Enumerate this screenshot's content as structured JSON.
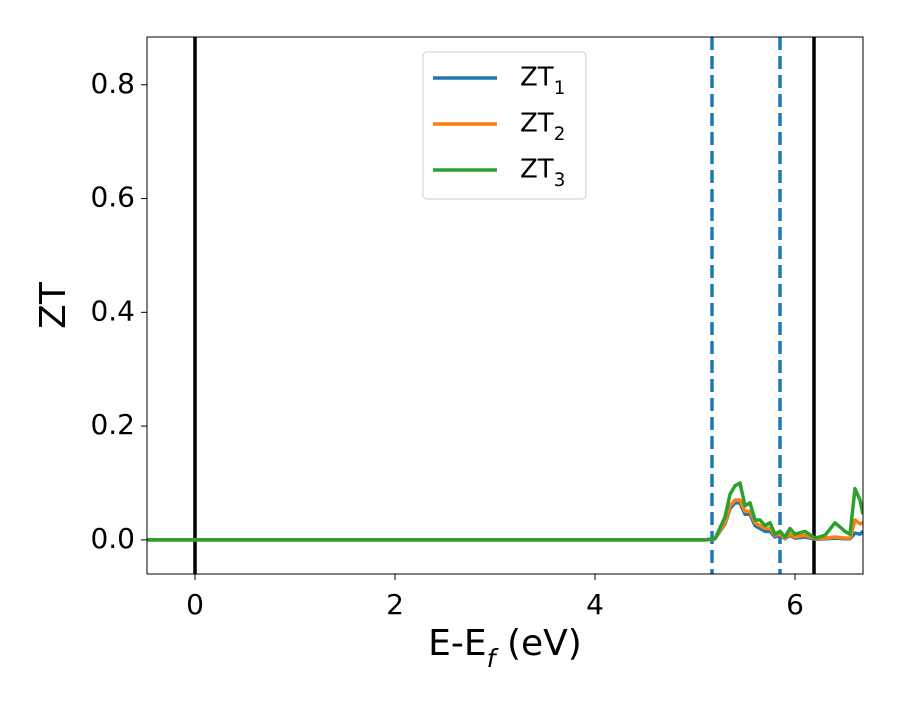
{
  "chart_data": {
    "type": "line",
    "xlabel": "E-E_f (eV)",
    "ylabel": "ZT",
    "x": [
      -0.48,
      5.1,
      5.2,
      5.3,
      5.35,
      5.4,
      5.45,
      5.5,
      5.55,
      5.6,
      5.65,
      5.7,
      5.75,
      5.8,
      5.85,
      5.9,
      5.95,
      6.0,
      6.1,
      6.2,
      6.3,
      6.4,
      6.5,
      6.55,
      6.6,
      6.65,
      6.68
    ],
    "series": [
      {
        "name": "ZT_1",
        "color": "#1f77b4",
        "values": [
          0,
          0,
          0.002,
          0.028,
          0.055,
          0.065,
          0.065,
          0.045,
          0.045,
          0.025,
          0.02,
          0.015,
          0.015,
          0.005,
          0.008,
          0.002,
          0.008,
          0.003,
          0.005,
          0.001,
          0.002,
          0.003,
          0.002,
          0.002,
          0.012,
          0.01,
          0.015
        ]
      },
      {
        "name": "ZT_2",
        "color": "#ff7f0e",
        "values": [
          0,
          0,
          0.002,
          0.03,
          0.06,
          0.07,
          0.07,
          0.05,
          0.05,
          0.03,
          0.025,
          0.02,
          0.02,
          0.008,
          0.01,
          0.003,
          0.01,
          0.005,
          0.008,
          0.002,
          0.003,
          0.005,
          0.003,
          0.003,
          0.035,
          0.028,
          0.03
        ]
      },
      {
        "name": "ZT_3",
        "color": "#2ca02c",
        "values": [
          0,
          0,
          0.002,
          0.04,
          0.08,
          0.095,
          0.1,
          0.06,
          0.065,
          0.035,
          0.035,
          0.025,
          0.03,
          0.01,
          0.015,
          0.005,
          0.02,
          0.01,
          0.015,
          0.003,
          0.008,
          0.03,
          0.015,
          0.01,
          0.09,
          0.07,
          0.045
        ]
      }
    ],
    "vlines": [
      {
        "x": 0,
        "color": "#000000",
        "style": "solid"
      },
      {
        "x": 5.17,
        "color": "#1f77b4",
        "style": "dashed"
      },
      {
        "x": 5.85,
        "color": "#1f77b4",
        "style": "dashed"
      },
      {
        "x": 6.19,
        "color": "#000000",
        "style": "solid"
      }
    ],
    "xlim": [
      -0.48,
      6.68
    ],
    "ylim": [
      -0.06,
      0.884
    ],
    "xticks": [
      0,
      2,
      4,
      6
    ],
    "yticks": [
      {
        "value": 0,
        "label": "0.0"
      },
      {
        "value": 0.2,
        "label": "0.2"
      },
      {
        "value": 0.4,
        "label": "0.4"
      },
      {
        "value": 0.6,
        "label": "0.6"
      },
      {
        "value": 0.8,
        "label": "0.8"
      }
    ],
    "legend": "upper center",
    "grid": false
  }
}
